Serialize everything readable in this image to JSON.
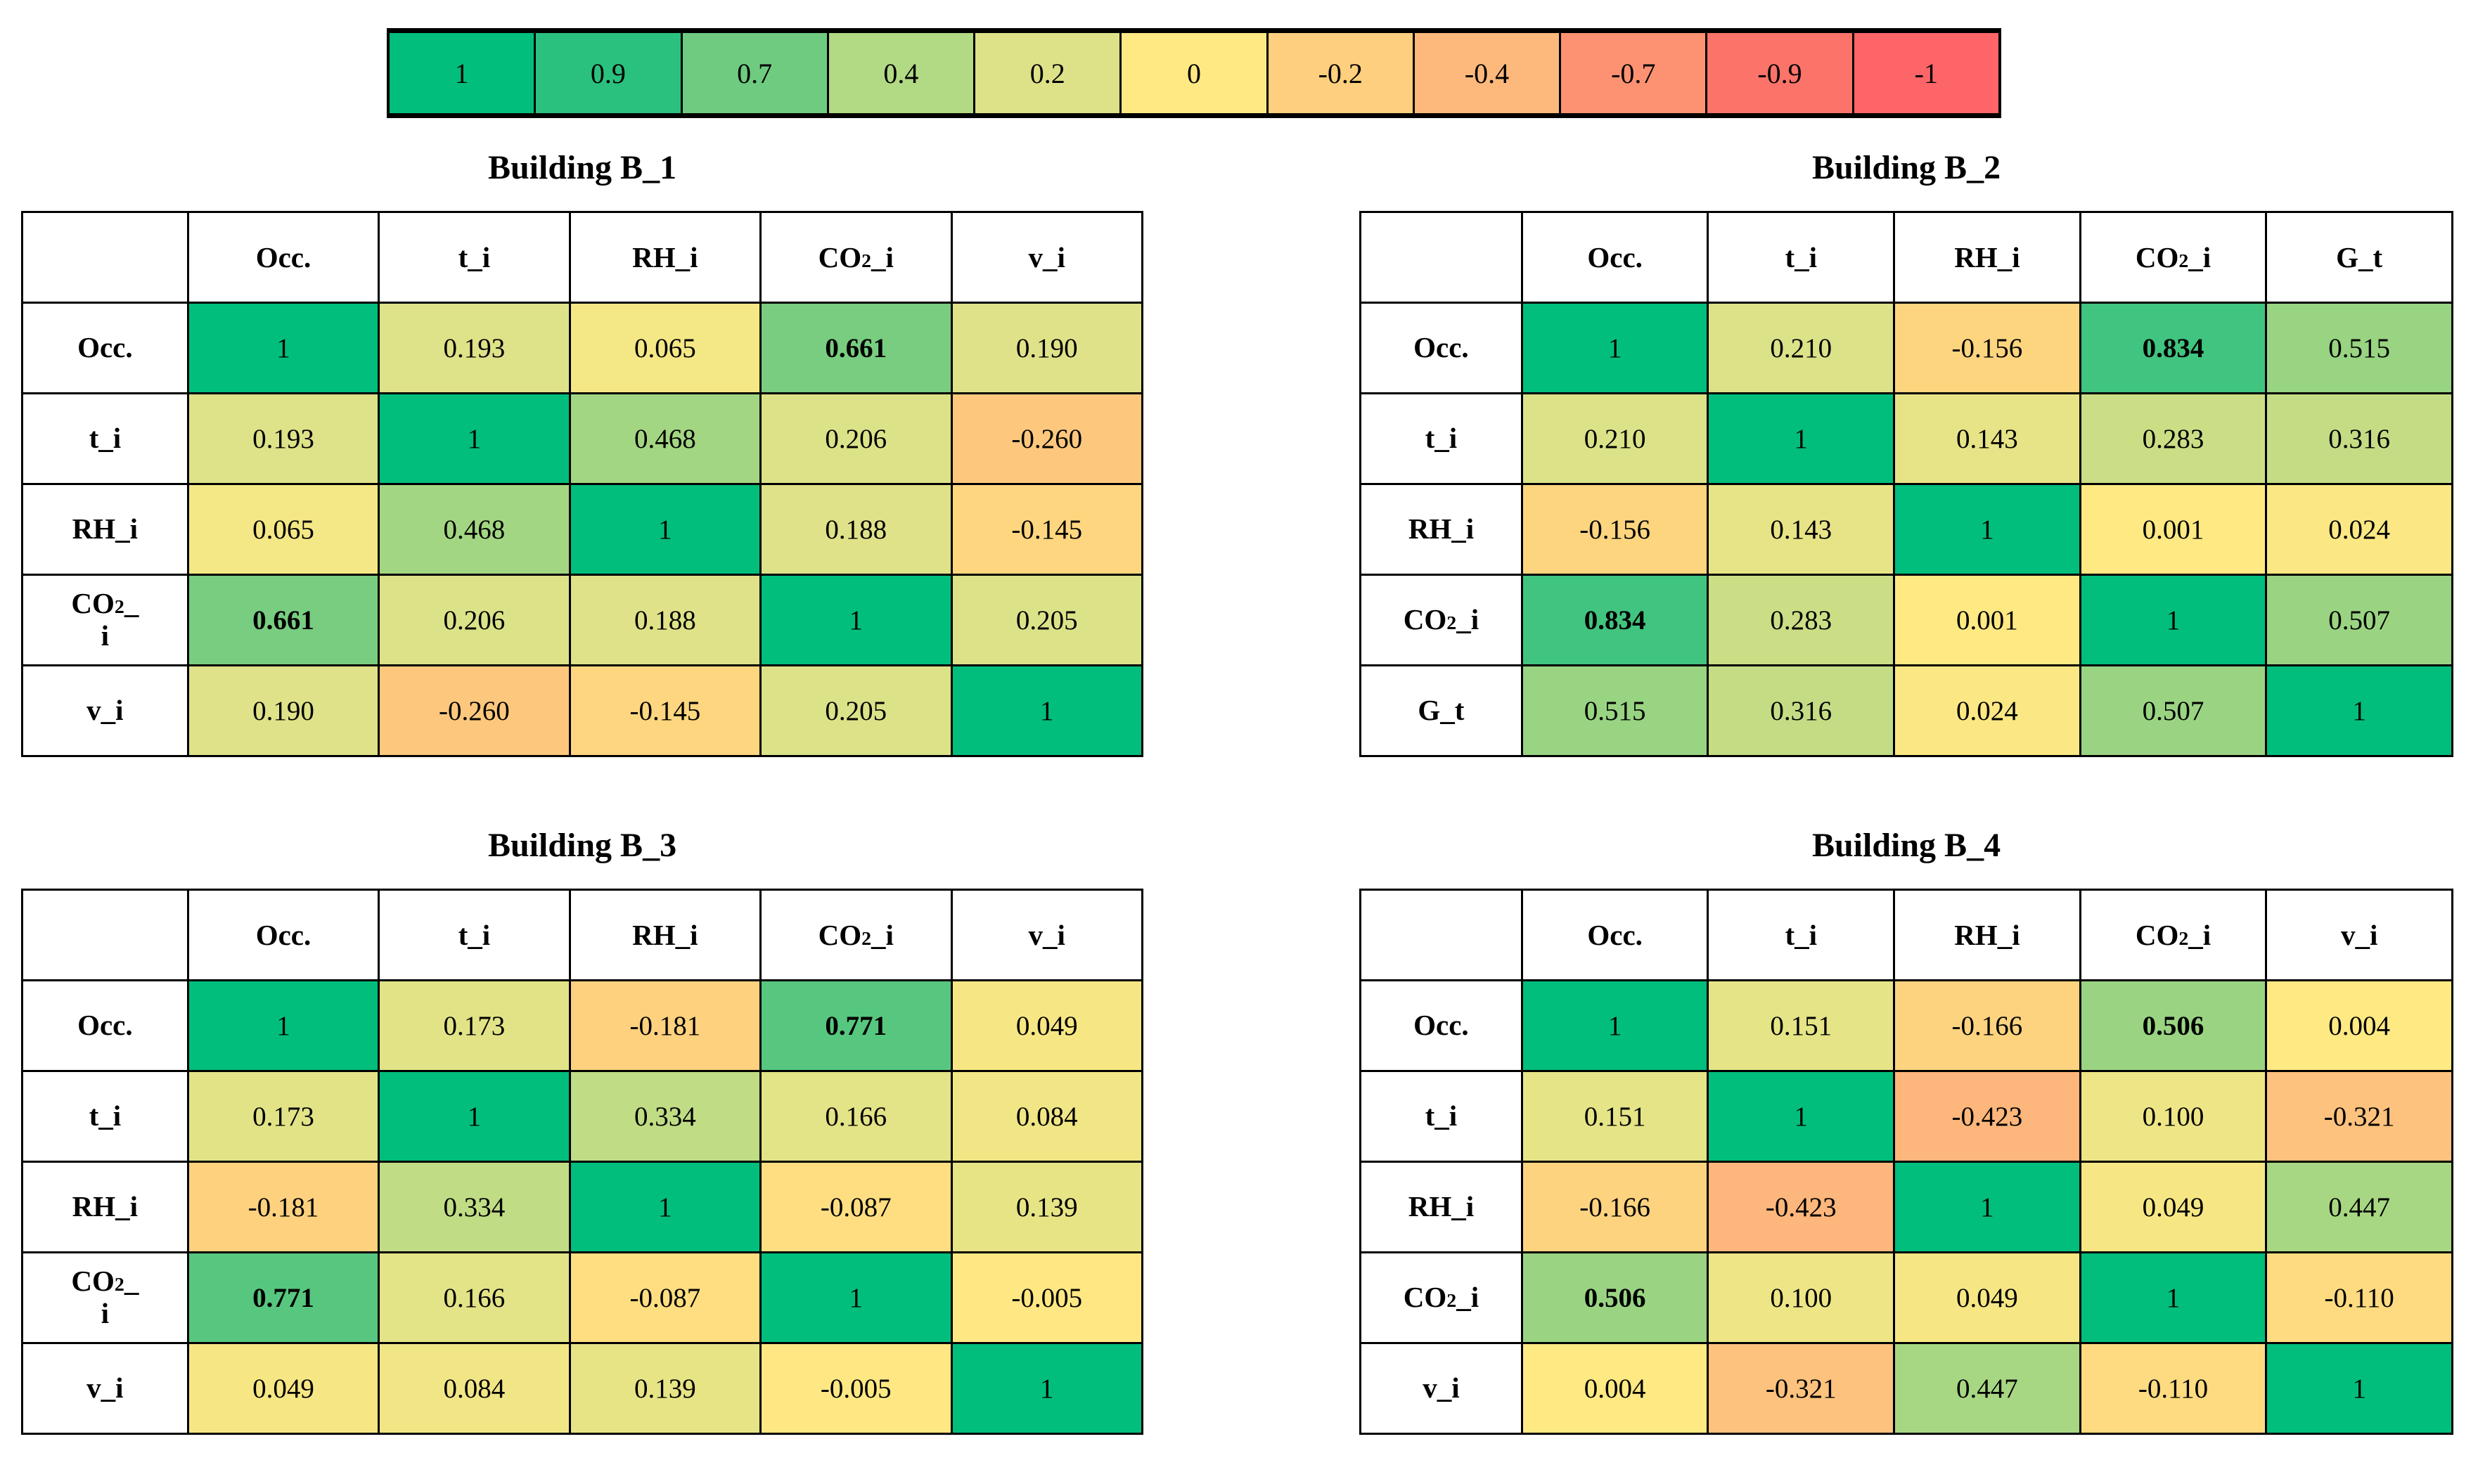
{
  "figure": {
    "background": "#ffffff",
    "description_titles": [
      "Building B_1",
      "Building B_2",
      "Building B_3",
      "Building B_4"
    ]
  },
  "legend": {
    "entries": [
      {
        "label": "1",
        "color": "#01be7c"
      },
      {
        "label": "0.9",
        "color": "#2ac17e"
      },
      {
        "label": "0.7",
        "color": "#6fcb80"
      },
      {
        "label": "0.4",
        "color": "#b2d983"
      },
      {
        "label": "0.2",
        "color": "#dde288"
      },
      {
        "label": "0",
        "color": "#ffe983"
      },
      {
        "label": "-0.2",
        "color": "#fdcf7e"
      },
      {
        "label": "-0.4",
        "color": "#fdb97c"
      },
      {
        "label": "-0.7",
        "color": "#fd9272"
      },
      {
        "label": "-0.9",
        "color": "#fc7369"
      },
      {
        "label": "-1",
        "color": "#fd6568"
      }
    ]
  },
  "chart_data": [
    {
      "type": "heatmap",
      "title": "Building B_1",
      "columns": [
        "Occ.",
        "t_i",
        "RH_i",
        "CO2_i",
        "v_i"
      ],
      "rows": [
        "Occ.",
        "t_i",
        "RH_i",
        "CO2_\ni",
        "v_i"
      ],
      "values": [
        [
          1,
          0.193,
          0.065,
          0.661,
          0.19
        ],
        [
          0.193,
          1,
          0.468,
          0.206,
          -0.26
        ],
        [
          0.065,
          0.468,
          1,
          0.188,
          -0.145
        ],
        [
          0.661,
          0.206,
          0.188,
          1,
          0.205
        ],
        [
          0.19,
          -0.26,
          -0.145,
          0.205,
          1
        ]
      ],
      "bold_cells": [
        [
          0,
          3
        ],
        [
          3,
          0
        ]
      ]
    },
    {
      "type": "heatmap",
      "title": "Building B_2",
      "columns": [
        "Occ.",
        "t_i",
        "RH_i",
        "CO2_i",
        "G_t"
      ],
      "rows": [
        "Occ.",
        "t_i",
        "RH_i",
        "CO2_i",
        "G_t"
      ],
      "values": [
        [
          1,
          0.21,
          -0.156,
          0.834,
          0.515
        ],
        [
          0.21,
          1,
          0.143,
          0.283,
          0.316
        ],
        [
          -0.156,
          0.143,
          1,
          0.001,
          0.024
        ],
        [
          0.834,
          0.283,
          0.001,
          1,
          0.507
        ],
        [
          0.515,
          0.316,
          0.024,
          0.507,
          1
        ]
      ],
      "bold_cells": [
        [
          0,
          3
        ],
        [
          3,
          0
        ]
      ]
    },
    {
      "type": "heatmap",
      "title": "Building B_3",
      "columns": [
        "Occ.",
        "t_i",
        "RH_i",
        "CO2_i",
        "v_i"
      ],
      "rows": [
        "Occ.",
        "t_i",
        "RH_i",
        "CO2_\ni",
        "v_i"
      ],
      "values": [
        [
          1,
          0.173,
          -0.181,
          0.771,
          0.049
        ],
        [
          0.173,
          1,
          0.334,
          0.166,
          0.084
        ],
        [
          -0.181,
          0.334,
          1,
          -0.087,
          0.139
        ],
        [
          0.771,
          0.166,
          -0.087,
          1,
          -0.005
        ],
        [
          0.049,
          0.084,
          0.139,
          -0.005,
          1
        ]
      ],
      "bold_cells": [
        [
          0,
          3
        ],
        [
          3,
          0
        ]
      ]
    },
    {
      "type": "heatmap",
      "title": "Building B_4",
      "columns": [
        "Occ.",
        "t_i",
        "RH_i",
        "CO2_i",
        "v_i"
      ],
      "rows": [
        "Occ.",
        "t_i",
        "RH_i",
        "CO2_i",
        "v_i"
      ],
      "values": [
        [
          1,
          0.151,
          -0.166,
          0.506,
          0.004
        ],
        [
          0.151,
          1,
          -0.423,
          0.1,
          -0.321
        ],
        [
          -0.166,
          -0.423,
          1,
          0.049,
          0.447
        ],
        [
          0.506,
          0.1,
          0.049,
          1,
          -0.11
        ],
        [
          0.004,
          -0.321,
          0.447,
          -0.11,
          1
        ]
      ],
      "bold_cells": [
        [
          0,
          3
        ],
        [
          3,
          0
        ]
      ]
    }
  ],
  "color_scale": {
    "stops": [
      [
        1,
        "#01be7c"
      ],
      [
        0.9,
        "#2ac17e"
      ],
      [
        0.7,
        "#6fcb80"
      ],
      [
        0.4,
        "#b2d983"
      ],
      [
        0.2,
        "#dde288"
      ],
      [
        0,
        "#ffe983"
      ],
      [
        -0.2,
        "#fdcf7e"
      ],
      [
        -0.4,
        "#fdb97c"
      ],
      [
        -0.7,
        "#fd9272"
      ],
      [
        -0.9,
        "#fc7369"
      ],
      [
        -1,
        "#fd6568"
      ]
    ]
  }
}
